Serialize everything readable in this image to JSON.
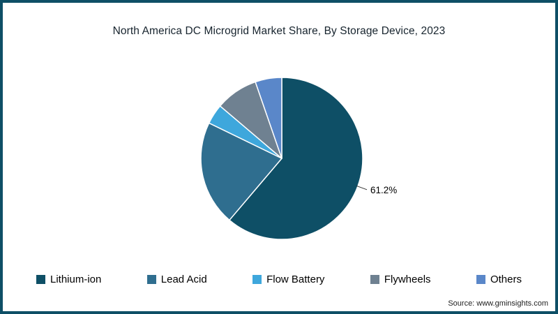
{
  "chart_data": {
    "type": "pie",
    "title": "North America DC Microgrid Market Share, By Storage Device, 2023",
    "categories": [
      "Lithium-ion",
      "Lead Acid",
      "Flow Battery",
      "Flywheels",
      "Others"
    ],
    "values": [
      61.2,
      21.0,
      4.0,
      8.5,
      5.3
    ],
    "colors": [
      "#0e4f66",
      "#2f6e8f",
      "#3ea7dc",
      "#6f8191",
      "#5a87c9"
    ],
    "start_angle_deg": 0,
    "direction": "clockwise",
    "label": {
      "category": "Lithium-ion",
      "index": 0,
      "text": "61.2%"
    },
    "legend_position": "bottom",
    "note": "Only the Lithium-ion slice carries a data label (61.2%); other slice values estimated from arc angles."
  },
  "source": "Source: www.gminsights.com",
  "styles": {
    "frame_color": "#0e4f66",
    "title_color": "#17242e",
    "leader_line_color": "#333333",
    "slice_stroke": "#ffffff"
  }
}
